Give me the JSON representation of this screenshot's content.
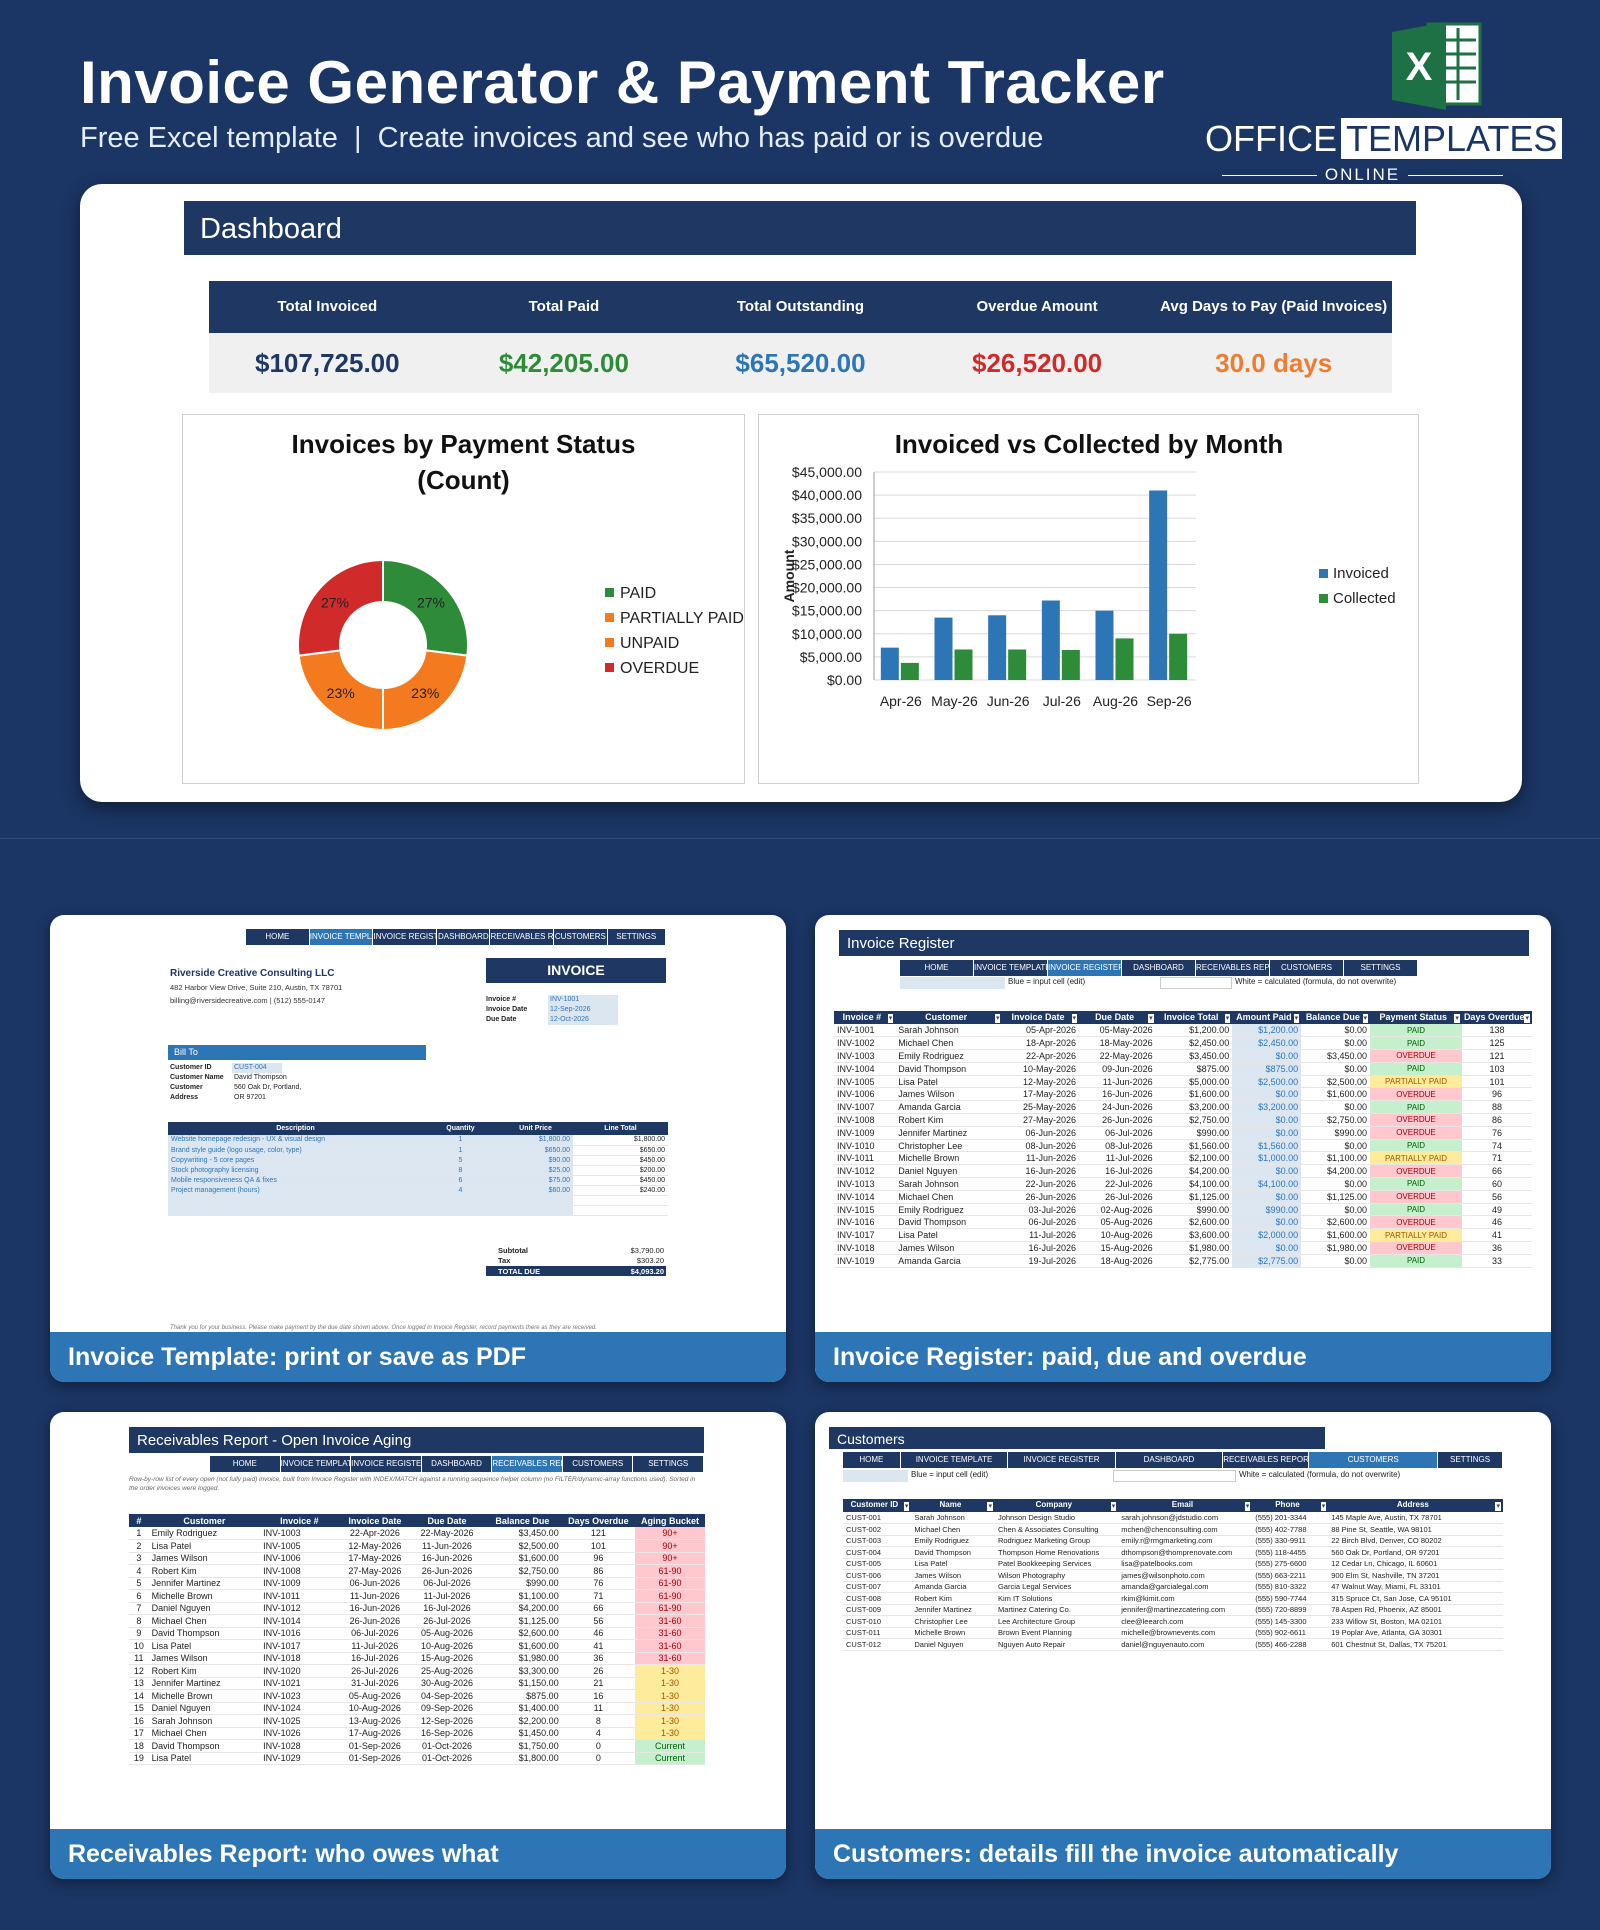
{
  "header": {
    "title": "Invoice Generator & Payment Tracker",
    "subtitle": "Free Excel template  |  Create invoices and see who has paid or is overdue"
  },
  "logo": {
    "excel_letter": "X",
    "brand_office": "OFFICE",
    "brand_templates": "TEMPLATES",
    "brand_online": "ONLINE"
  },
  "dashboard": {
    "title": "Dashboard",
    "kpis": [
      {
        "label": "Total Invoiced",
        "value": "$107,725.00",
        "color": "#1f3863"
      },
      {
        "label": "Total Paid",
        "value": "$42,205.00",
        "color": "#2e8b3a"
      },
      {
        "label": "Total Outstanding",
        "value": "$65,520.00",
        "color": "#2e75b6"
      },
      {
        "label": "Overdue Amount",
        "value": "$26,520.00",
        "color": "#d12a2a"
      },
      {
        "label": "Avg Days to Pay (Paid Invoices)",
        "value": "30.0 days",
        "color": "#ed7d31"
      }
    ]
  },
  "chart_data": [
    {
      "type": "pie",
      "title": "Invoices by Payment Status (Count)",
      "title_line1": "Invoices by Payment Status",
      "title_line2": "(Count)",
      "labels": [
        "PAID",
        "PARTIALLY PAID",
        "UNPAID",
        "OVERDUE"
      ],
      "values": [
        27,
        23,
        23,
        27
      ],
      "value_labels": [
        "27%",
        "23%",
        "23%",
        "27%"
      ],
      "colors": [
        "#2e8b3a",
        "#f47a1f",
        "#f47a1f",
        "#d12a2a"
      ],
      "legend": "right"
    },
    {
      "type": "bar",
      "title": "Invoiced vs Collected by Month",
      "ylabel": "Amount",
      "xlabel": "",
      "categories": [
        "Apr-26",
        "May-26",
        "Jun-26",
        "Jul-26",
        "Aug-26",
        "Sep-26"
      ],
      "series": [
        {
          "name": "Invoiced",
          "values": [
            7000,
            13500,
            14000,
            17200,
            15000,
            41000
          ],
          "color": "#2e75b6"
        },
        {
          "name": "Collected",
          "values": [
            3700,
            6600,
            6600,
            6500,
            9000,
            10000
          ],
          "color": "#2e8b3a"
        }
      ],
      "ylim": [
        0,
        45000
      ],
      "ytick_labels": [
        "$0.00",
        "$5,000.00",
        "$10,000.00",
        "$15,000.00",
        "$20,000.00",
        "$25,000.00",
        "$30,000.00",
        "$35,000.00",
        "$40,000.00",
        "$45,000.00"
      ],
      "grid": true,
      "legend": "right"
    }
  ],
  "invoice_template": {
    "caption": "Invoice Template: print or save as PDF",
    "nav": [
      "HOME",
      "INVOICE TEMPLATE",
      "INVOICE REGISTER",
      "DASHBOARD",
      "RECEIVABLES REPORT",
      "CUSTOMERS",
      "SETTINGS"
    ],
    "company_name": "Riverside Creative Consulting LLC",
    "company_addr": "482 Harbor View Drive, Suite 210, Austin, TX 78701",
    "company_contact": "billing@riversidecreative.com  |  (512) 555-0147",
    "invoice_heading": "INVOICE",
    "meta": [
      {
        "k": "Invoice #",
        "v": "INV-1001"
      },
      {
        "k": "Invoice Date",
        "v": "12-Sep-2026"
      },
      {
        "k": "Due Date",
        "v": "12-Oct-2026"
      }
    ],
    "bill_to": "Bill To",
    "bill": [
      {
        "k": "Customer ID",
        "v": "CUST-004"
      },
      {
        "k": "Customer Name",
        "v": "David Thompson"
      },
      {
        "k": "Customer Address",
        "v": "560 Oak Dr, Portland, OR 97201"
      }
    ],
    "items_head": [
      "Description",
      "Quantity",
      "Unit Price",
      "Line Total"
    ],
    "items": [
      [
        "Website homepage redesign - UX & visual design",
        "1",
        "$1,800.00",
        "$1,800.00"
      ],
      [
        "Brand style guide (logo usage, color, type)",
        "1",
        "$650.00",
        "$650.00"
      ],
      [
        "Copywriting - 5 core pages",
        "5",
        "$90.00",
        "$450.00"
      ],
      [
        "Stock photography licensing",
        "8",
        "$25.00",
        "$200.00"
      ],
      [
        "Mobile responsiveness QA & fixes",
        "6",
        "$75.00",
        "$450.00"
      ],
      [
        "Project management (hours)",
        "4",
        "$60.00",
        "$240.00"
      ]
    ],
    "subtotal_label": "Subtotal",
    "subtotal": "$3,790.00",
    "tax_label": "Tax",
    "tax": "$303.20",
    "total_label": "TOTAL DUE",
    "total": "$4,093.20",
    "footer": "Thank you for your business. Please make payment by the due date shown above. Once logged in Invoice Register, record payments there as they are received."
  },
  "invoice_register": {
    "caption": "Invoice Register: paid, due and overdue",
    "title": "Invoice Register",
    "nav": [
      "HOME",
      "INVOICE TEMPLATE",
      "INVOICE REGISTER",
      "DASHBOARD",
      "RECEIVABLES REPORT",
      "CUSTOMERS",
      "SETTINGS"
    ],
    "note_blue": "Blue = input cell (edit)",
    "note_white": "White = calculated (formula, do not overwrite)",
    "columns": [
      "Invoice #",
      "Customer",
      "Invoice Date",
      "Due Date",
      "Invoice Total",
      "Amount Paid",
      "Balance Due",
      "Payment Status",
      "Days Overdue"
    ],
    "rows": [
      [
        "INV-1001",
        "Sarah Johnson",
        "05-Apr-2026",
        "05-May-2026",
        "$1,200.00",
        "$1,200.00",
        "$0.00",
        "PAID",
        "138"
      ],
      [
        "INV-1002",
        "Michael Chen",
        "18-Apr-2026",
        "18-May-2026",
        "$2,450.00",
        "$2,450.00",
        "$0.00",
        "PAID",
        "125"
      ],
      [
        "INV-1003",
        "Emily Rodriguez",
        "22-Apr-2026",
        "22-May-2026",
        "$3,450.00",
        "$0.00",
        "$3,450.00",
        "OVERDUE",
        "121"
      ],
      [
        "INV-1004",
        "David Thompson",
        "10-May-2026",
        "09-Jun-2026",
        "$875.00",
        "$875.00",
        "$0.00",
        "PAID",
        "103"
      ],
      [
        "INV-1005",
        "Lisa Patel",
        "12-May-2026",
        "11-Jun-2026",
        "$5,000.00",
        "$2,500.00",
        "$2,500.00",
        "PARTIALLY PAID",
        "101"
      ],
      [
        "INV-1006",
        "James Wilson",
        "17-May-2026",
        "16-Jun-2026",
        "$1,600.00",
        "$0.00",
        "$1,600.00",
        "OVERDUE",
        "96"
      ],
      [
        "INV-1007",
        "Amanda Garcia",
        "25-May-2026",
        "24-Jun-2026",
        "$3,200.00",
        "$3,200.00",
        "$0.00",
        "PAID",
        "88"
      ],
      [
        "INV-1008",
        "Robert Kim",
        "27-May-2026",
        "26-Jun-2026",
        "$2,750.00",
        "$0.00",
        "$2,750.00",
        "OVERDUE",
        "86"
      ],
      [
        "INV-1009",
        "Jennifer Martinez",
        "06-Jun-2026",
        "06-Jul-2026",
        "$990.00",
        "$0.00",
        "$990.00",
        "OVERDUE",
        "76"
      ],
      [
        "INV-1010",
        "Christopher Lee",
        "08-Jun-2026",
        "08-Jul-2026",
        "$1,560.00",
        "$1,560.00",
        "$0.00",
        "PAID",
        "74"
      ],
      [
        "INV-1011",
        "Michelle Brown",
        "11-Jun-2026",
        "11-Jul-2026",
        "$2,100.00",
        "$1,000.00",
        "$1,100.00",
        "PARTIALLY PAID",
        "71"
      ],
      [
        "INV-1012",
        "Daniel Nguyen",
        "16-Jun-2026",
        "16-Jul-2026",
        "$4,200.00",
        "$0.00",
        "$4,200.00",
        "OVERDUE",
        "66"
      ],
      [
        "INV-1013",
        "Sarah Johnson",
        "22-Jun-2026",
        "22-Jul-2026",
        "$4,100.00",
        "$4,100.00",
        "$0.00",
        "PAID",
        "60"
      ],
      [
        "INV-1014",
        "Michael Chen",
        "26-Jun-2026",
        "26-Jul-2026",
        "$1,125.00",
        "$0.00",
        "$1,125.00",
        "OVERDUE",
        "56"
      ],
      [
        "INV-1015",
        "Emily Rodriguez",
        "03-Jul-2026",
        "02-Aug-2026",
        "$990.00",
        "$990.00",
        "$0.00",
        "PAID",
        "49"
      ],
      [
        "INV-1016",
        "David Thompson",
        "06-Jul-2026",
        "05-Aug-2026",
        "$2,600.00",
        "$0.00",
        "$2,600.00",
        "OVERDUE",
        "46"
      ],
      [
        "INV-1017",
        "Lisa Patel",
        "11-Jul-2026",
        "10-Aug-2026",
        "$3,600.00",
        "$2,000.00",
        "$1,600.00",
        "PARTIALLY PAID",
        "41"
      ],
      [
        "INV-1018",
        "James Wilson",
        "16-Jul-2026",
        "15-Aug-2026",
        "$1,980.00",
        "$0.00",
        "$1,980.00",
        "OVERDUE",
        "36"
      ],
      [
        "INV-1019",
        "Amanda Garcia",
        "19-Jul-2026",
        "18-Aug-2026",
        "$2,775.00",
        "$2,775.00",
        "$0.00",
        "PAID",
        "33"
      ]
    ]
  },
  "receivables": {
    "caption": "Receivables Report: who owes what",
    "title": "Receivables Report - Open Invoice Aging",
    "nav": [
      "HOME",
      "INVOICE TEMPLATE",
      "INVOICE REGISTER",
      "DASHBOARD",
      "RECEIVABLES REPORT",
      "CUSTOMERS",
      "SETTINGS"
    ],
    "note": "Row-by-row list of every open (not fully paid) invoice, built from Invoice Register with INDEX/MATCH against a running sequence helper column (no FILTER/dynamic-array functions used). Sorted in the order invoices were logged.",
    "columns": [
      "#",
      "Customer",
      "Invoice #",
      "Invoice Date",
      "Due Date",
      "Balance Due",
      "Days Overdue",
      "Aging Bucket"
    ],
    "rows": [
      [
        "1",
        "Emily Rodriguez",
        "INV-1003",
        "22-Apr-2026",
        "22-May-2026",
        "$3,450.00",
        "121",
        "90+"
      ],
      [
        "2",
        "Lisa Patel",
        "INV-1005",
        "12-May-2026",
        "11-Jun-2026",
        "$2,500.00",
        "101",
        "90+"
      ],
      [
        "3",
        "James Wilson",
        "INV-1006",
        "17-May-2026",
        "16-Jun-2026",
        "$1,600.00",
        "96",
        "90+"
      ],
      [
        "4",
        "Robert Kim",
        "INV-1008",
        "27-May-2026",
        "26-Jun-2026",
        "$2,750.00",
        "86",
        "61-90"
      ],
      [
        "5",
        "Jennifer Martinez",
        "INV-1009",
        "06-Jun-2026",
        "06-Jul-2026",
        "$990.00",
        "76",
        "61-90"
      ],
      [
        "6",
        "Michelle Brown",
        "INV-1011",
        "11-Jun-2026",
        "11-Jul-2026",
        "$1,100.00",
        "71",
        "61-90"
      ],
      [
        "7",
        "Daniel Nguyen",
        "INV-1012",
        "16-Jun-2026",
        "16-Jul-2026",
        "$4,200.00",
        "66",
        "61-90"
      ],
      [
        "8",
        "Michael Chen",
        "INV-1014",
        "26-Jun-2026",
        "26-Jul-2026",
        "$1,125.00",
        "56",
        "31-60"
      ],
      [
        "9",
        "David Thompson",
        "INV-1016",
        "06-Jul-2026",
        "05-Aug-2026",
        "$2,600.00",
        "46",
        "31-60"
      ],
      [
        "10",
        "Lisa Patel",
        "INV-1017",
        "11-Jul-2026",
        "10-Aug-2026",
        "$1,600.00",
        "41",
        "31-60"
      ],
      [
        "11",
        "James Wilson",
        "INV-1018",
        "16-Jul-2026",
        "15-Aug-2026",
        "$1,980.00",
        "36",
        "31-60"
      ],
      [
        "12",
        "Robert Kim",
        "INV-1020",
        "26-Jul-2026",
        "25-Aug-2026",
        "$3,300.00",
        "26",
        "1-30"
      ],
      [
        "13",
        "Jennifer Martinez",
        "INV-1021",
        "31-Jul-2026",
        "30-Aug-2026",
        "$1,150.00",
        "21",
        "1-30"
      ],
      [
        "14",
        "Michelle Brown",
        "INV-1023",
        "05-Aug-2026",
        "04-Sep-2026",
        "$875.00",
        "16",
        "1-30"
      ],
      [
        "15",
        "Daniel Nguyen",
        "INV-1024",
        "10-Aug-2026",
        "09-Sep-2026",
        "$1,400.00",
        "11",
        "1-30"
      ],
      [
        "16",
        "Sarah Johnson",
        "INV-1025",
        "13-Aug-2026",
        "12-Sep-2026",
        "$2,200.00",
        "8",
        "1-30"
      ],
      [
        "17",
        "Michael Chen",
        "INV-1026",
        "17-Aug-2026",
        "16-Sep-2026",
        "$1,450.00",
        "4",
        "1-30"
      ],
      [
        "18",
        "David Thompson",
        "INV-1028",
        "01-Sep-2026",
        "01-Oct-2026",
        "$1,750.00",
        "0",
        "Current"
      ],
      [
        "19",
        "Lisa Patel",
        "INV-1029",
        "01-Sep-2026",
        "01-Oct-2026",
        "$1,800.00",
        "0",
        "Current"
      ]
    ]
  },
  "customers": {
    "caption": "Customers: details fill the invoice automatically",
    "title": "Customers",
    "nav": [
      "HOME",
      "INVOICE TEMPLATE",
      "INVOICE REGISTER",
      "DASHBOARD",
      "RECEIVABLES REPORT",
      "CUSTOMERS",
      "SETTINGS"
    ],
    "note_blue": "Blue = input cell (edit)",
    "note_white": "White = calculated (formula, do not overwrite)",
    "columns": [
      "Customer ID",
      "Name",
      "Company",
      "Email",
      "Phone",
      "Address"
    ],
    "rows": [
      [
        "CUST-001",
        "Sarah Johnson",
        "Johnson Design Studio",
        "sarah.johnson@jdstudio.com",
        "(555) 201-3344",
        "145 Maple Ave, Austin, TX 78701"
      ],
      [
        "CUST-002",
        "Michael Chen",
        "Chen & Associates Consulting",
        "mchen@chenconsulting.com",
        "(555) 402-7788",
        "88 Pine St, Seattle, WA 98101"
      ],
      [
        "CUST-003",
        "Emily Rodriguez",
        "Rodriguez Marketing Group",
        "emily.r@rmgmarketing.com",
        "(555) 330-9911",
        "22 Birch Blvd, Denver, CO 80202"
      ],
      [
        "CUST-004",
        "David Thompson",
        "Thompson Home Renovations",
        "dthompson@thomprenovate.com",
        "(555) 118-4455",
        "560 Oak Dr, Portland, OR 97201"
      ],
      [
        "CUST-005",
        "Lisa Patel",
        "Patel Bookkeeping Services",
        "lisa@patelbooks.com",
        "(555) 275-6600",
        "12 Cedar Ln, Chicago, IL 60601"
      ],
      [
        "CUST-006",
        "James Wilson",
        "Wilson Photography",
        "james@wilsonphoto.com",
        "(555) 663-2211",
        "900 Elm St, Nashville, TN 37201"
      ],
      [
        "CUST-007",
        "Amanda Garcia",
        "Garcia Legal Services",
        "amanda@garcialegal.com",
        "(555) 810-3322",
        "47 Walnut Way, Miami, FL 33101"
      ],
      [
        "CUST-008",
        "Robert Kim",
        "Kim IT Solutions",
        "rkim@kimit.com",
        "(555) 590-7744",
        "315 Spruce Ct, San Jose, CA 95101"
      ],
      [
        "CUST-009",
        "Jennifer Martinez",
        "Martinez Catering Co.",
        "jennifer@martinezcatering.com",
        "(555) 720-8899",
        "78 Aspen Rd, Phoenix, AZ 85001"
      ],
      [
        "CUST-010",
        "Christopher Lee",
        "Lee Architecture Group",
        "clee@leearch.com",
        "(555) 145-3300",
        "233 Willow St, Boston, MA 02101"
      ],
      [
        "CUST-011",
        "Michelle Brown",
        "Brown Event Planning",
        "michelle@brownevents.com",
        "(555) 902-6611",
        "19 Poplar Ave, Atlanta, GA 30301"
      ],
      [
        "CUST-012",
        "Daniel Nguyen",
        "Nguyen Auto Repair",
        "daniel@nguyenauto.com",
        "(555) 466-2288",
        "601 Chestnut St, Dallas, TX 75201"
      ]
    ]
  }
}
